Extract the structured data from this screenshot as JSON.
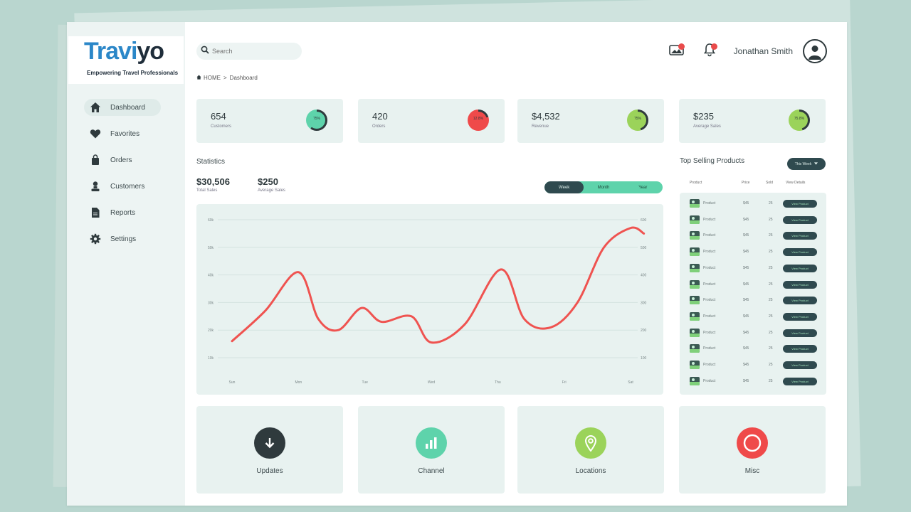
{
  "logo": {
    "brand_blue": "Travi",
    "brand_dark": "yo",
    "tagline": "Empowering Travel Professionals"
  },
  "sidebar": {
    "items": [
      {
        "label": "Dashboard",
        "icon": "home-icon",
        "active": true
      },
      {
        "label": "Favorites",
        "icon": "heart-icon",
        "active": false
      },
      {
        "label": "Orders",
        "icon": "shopping-bag-icon",
        "active": false
      },
      {
        "label": "Customers",
        "icon": "user-icon",
        "active": false
      },
      {
        "label": "Reports",
        "icon": "document-icon",
        "active": false
      },
      {
        "label": "Settings",
        "icon": "gear-icon",
        "active": false
      }
    ]
  },
  "header": {
    "search_placeholder": "Search",
    "user_name": "Jonathan Smith",
    "breadcrumb": {
      "home": "HOME",
      "separator": ">",
      "current": "Dashboard"
    }
  },
  "kpis": [
    {
      "value": "654",
      "label": "Customers",
      "ring_text": "75%",
      "color": "#5ed3ab"
    },
    {
      "value": "420",
      "label": "Orders",
      "ring_text": "12.8%",
      "color": "#ef4a4a"
    },
    {
      "value": "$4,532",
      "label": "Revenue",
      "ring_text": "75%",
      "color": "#9bd35a"
    },
    {
      "value": "$235",
      "label": "Average Sales",
      "ring_text": "75.8%",
      "color": "#9bd35a"
    }
  ],
  "statistics": {
    "title": "Statistics",
    "total_value": "$30,506",
    "total_label": "Total Sales",
    "avg_value": "$250",
    "avg_label": "Average Sales",
    "toggle": {
      "options": [
        "Week",
        "Month",
        "Year"
      ],
      "active": "Week"
    }
  },
  "chart_data": {
    "type": "line",
    "categories": [
      "Sun",
      "Mon",
      "Tue",
      "Wed",
      "Thu",
      "Fri",
      "Sat"
    ],
    "left_ticks": [
      "10k",
      "20k",
      "30k",
      "40k",
      "50k",
      "60k"
    ],
    "right_ticks": [
      "100",
      "200",
      "300",
      "400",
      "500",
      "600"
    ],
    "x": [
      0,
      0.5,
      1,
      1.3,
      1.6,
      1.95,
      2.25,
      2.7,
      3.0,
      3.5,
      4.05,
      4.4,
      4.8,
      5.2,
      5.6,
      6.0,
      6.2
    ],
    "values": [
      16,
      27,
      41,
      24,
      20,
      28,
      23,
      25,
      15.5,
      22,
      42,
      24,
      21,
      30,
      50,
      57,
      55
    ],
    "ylim": [
      10,
      60
    ],
    "color": "#ef5350",
    "grid": true
  },
  "top_products": {
    "title": "Top Selling Products",
    "filter_label": "This Week",
    "columns": [
      "Product",
      "Price",
      "Sold",
      "View Details"
    ],
    "rows": [
      {
        "name": "Product",
        "price": "$45",
        "sold": "25",
        "button": "View Product"
      },
      {
        "name": "Product",
        "price": "$45",
        "sold": "25",
        "button": "View Product"
      },
      {
        "name": "Product",
        "price": "$45",
        "sold": "25",
        "button": "View Product"
      },
      {
        "name": "Product",
        "price": "$45",
        "sold": "25",
        "button": "View Product"
      },
      {
        "name": "Product",
        "price": "$45",
        "sold": "25",
        "button": "View Product"
      },
      {
        "name": "Product",
        "price": "$45",
        "sold": "25",
        "button": "View Product"
      },
      {
        "name": "Product",
        "price": "$45",
        "sold": "25",
        "button": "View Product"
      },
      {
        "name": "Product",
        "price": "$45",
        "sold": "25",
        "button": "View Product"
      },
      {
        "name": "Product",
        "price": "$45",
        "sold": "25",
        "button": "View Product"
      },
      {
        "name": "Product",
        "price": "$45",
        "sold": "25",
        "button": "View Product"
      },
      {
        "name": "Product",
        "price": "$45",
        "sold": "25",
        "button": "View Product"
      },
      {
        "name": "Product",
        "price": "$45",
        "sold": "25",
        "button": "View Product"
      }
    ]
  },
  "tiles": [
    {
      "label": "Updates",
      "icon": "download-arrow-icon",
      "color": "#2f3a3d"
    },
    {
      "label": "Channel",
      "icon": "bar-chart-icon",
      "color": "#5ed3ab"
    },
    {
      "label": "Locations",
      "icon": "map-pin-icon",
      "color": "#9bd35a"
    },
    {
      "label": "Misc",
      "icon": "circle-icon",
      "color": "#ef4a4a"
    }
  ]
}
